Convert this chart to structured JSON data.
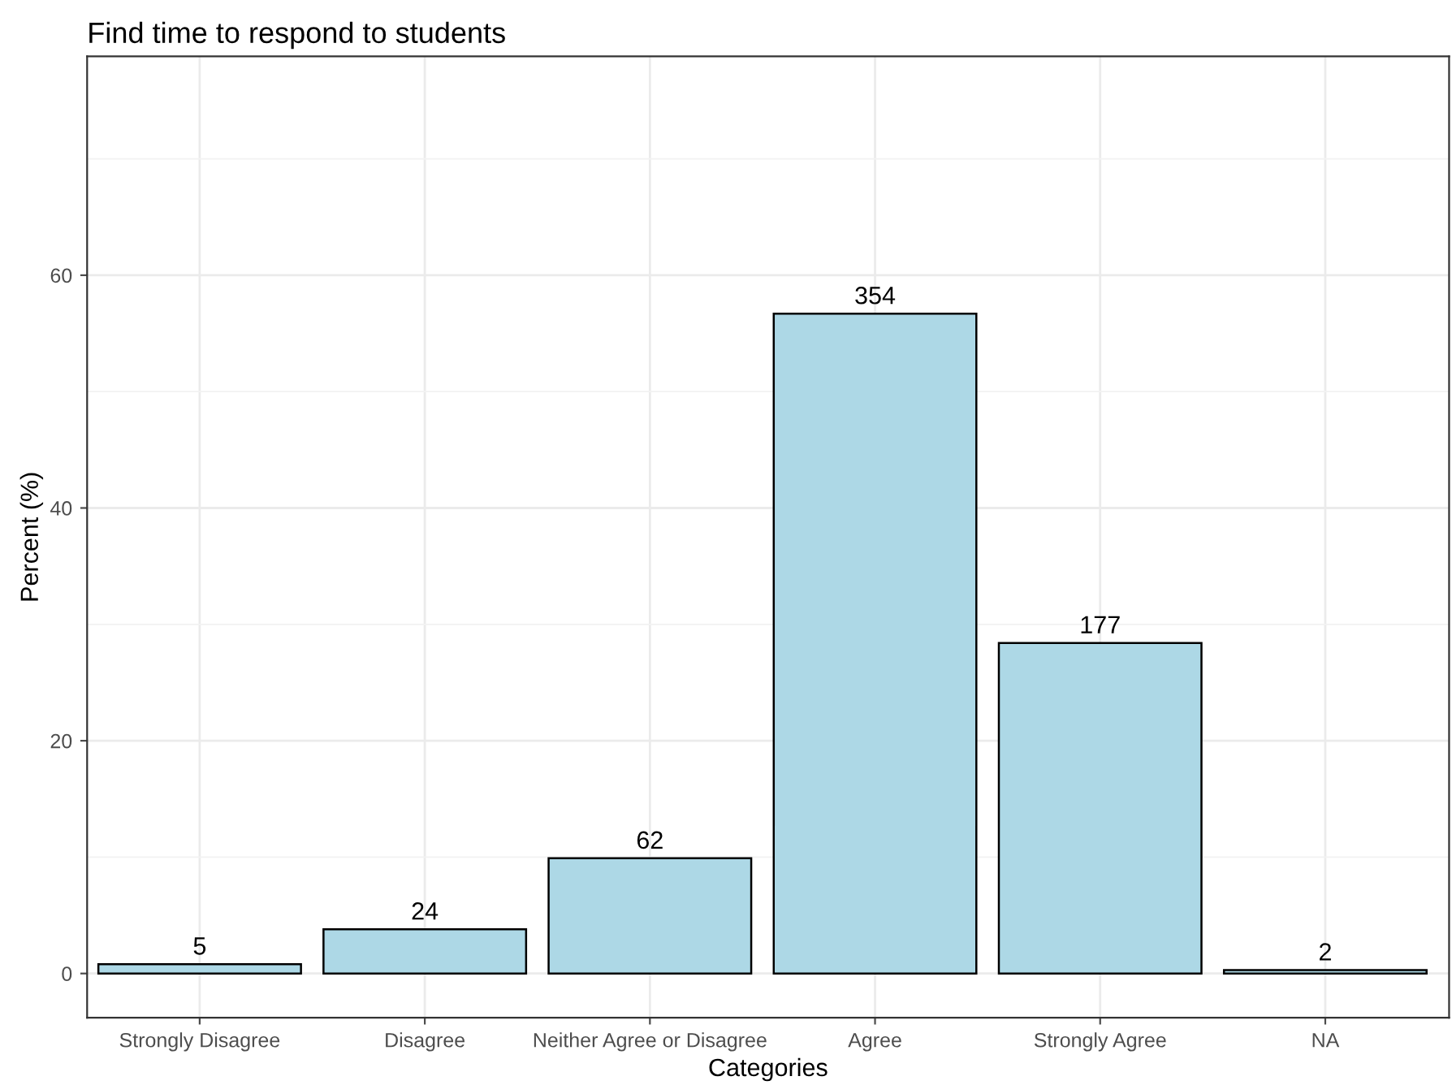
{
  "chart_data": {
    "type": "bar",
    "title": "Find time to respond to students",
    "xlabel": "Categories",
    "ylabel": "Percent (%)",
    "categories": [
      "Strongly Disagree",
      "Disagree",
      "Neither Agree or Disagree",
      "Agree",
      "Strongly Agree",
      "NA"
    ],
    "values": [
      0.8,
      3.8,
      9.9,
      56.7,
      28.4,
      0.3
    ],
    "annotations": [
      {
        "text": "5",
        "x": "Strongly Disagree",
        "y": 0.8
      },
      {
        "text": "24",
        "x": "Disagree",
        "y": 3.8
      },
      {
        "text": "62",
        "x": "Neither Agree or Disagree",
        "y": 9.9
      },
      {
        "text": "354",
        "x": "Agree",
        "y": 56.7
      },
      {
        "text": "177",
        "x": "Strongly Agree",
        "y": 28.4
      },
      {
        "text": "2",
        "x": "NA",
        "y": 0.3
      }
    ],
    "color": "#add8e6",
    "ylim": [
      -3.8,
      78.8
    ],
    "yticks": [
      0,
      20,
      40,
      60,
      {
        "value": 10,
        "label": null
      },
      {
        "value": 30,
        "label": null
      },
      {
        "value": 50,
        "label": null
      },
      {
        "value": 70,
        "label": null
      }
    ],
    "grid": true
  }
}
